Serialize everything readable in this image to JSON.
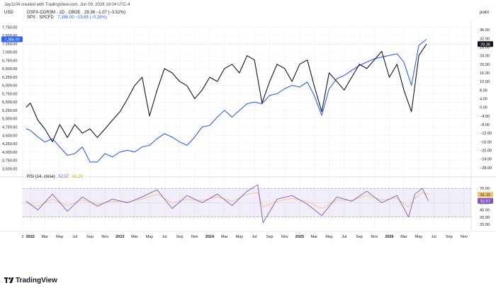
{
  "attribution": "Jay1104 created with TradingView.com, Jun 09, 2026 19:04 UTC-4",
  "brand": "TradingView",
  "header": {
    "currency_left": "USD",
    "currency_right": "point",
    "series1_label": "DSPX-COR3M · 1D · CBOE",
    "series1_values": "29.36  −1.07 (−3.52%)",
    "series2_label": "SPX · SPCFD",
    "series2_values": "7,386.00  −19.65 (−0.26%)"
  },
  "colors": {
    "series1": "#131722",
    "series2": "#2962ff",
    "rsi_line": "#7e57c2",
    "rsi_ma": "#f0c674",
    "rsi_band": "#7e57c2",
    "grid": "#eef0f4"
  },
  "chart_data": [
    {
      "type": "line",
      "title": "",
      "x": [
        "2021-12-15",
        "2022-01-01",
        "2022-02-01",
        "2022-03-01",
        "2022-04-01",
        "2022-05-01",
        "2022-06-01",
        "2022-07-01",
        "2022-08-01",
        "2022-09-01",
        "2022-10-01",
        "2022-11-01",
        "2022-12-01",
        "2023-01-01",
        "2023-02-01",
        "2023-03-01",
        "2023-04-01",
        "2023-05-01",
        "2023-06-01",
        "2023-07-01",
        "2023-08-01",
        "2023-09-01",
        "2023-10-01",
        "2023-11-01",
        "2023-12-01",
        "2024-01-01",
        "2024-02-01",
        "2024-03-01",
        "2024-04-01",
        "2024-05-01",
        "2024-06-01",
        "2024-07-01",
        "2024-08-01",
        "2024-09-01",
        "2024-10-01",
        "2024-11-01",
        "2024-12-01",
        "2025-01-01",
        "2025-02-01",
        "2025-03-01",
        "2025-04-01",
        "2025-05-01",
        "2025-06-01",
        "2025-07-01",
        "2025-08-01",
        "2025-09-01",
        "2025-10-01",
        "2025-11-01",
        "2025-12-01",
        "2026-01-01",
        "2026-02-01",
        "2026-03-01",
        "2026-04-01",
        "2026-05-01",
        "2026-06-01"
      ],
      "series": [
        {
          "name": "SPX · SPCFD",
          "axis": "left",
          "values": [
            4700,
            4650,
            4450,
            4300,
            4400,
            4150,
            3900,
            3950,
            4150,
            3700,
            3700,
            3950,
            3850,
            4000,
            4050,
            4000,
            4150,
            4200,
            4400,
            4550,
            4450,
            4300,
            4200,
            4450,
            4750,
            4800,
            5050,
            5250,
            5050,
            5250,
            5450,
            5500,
            5450,
            5700,
            5750,
            5900,
            6000,
            5950,
            6100,
            5700,
            5100,
            5900,
            6200,
            6300,
            6450,
            6600,
            6700,
            6800,
            6850,
            6900,
            6950,
            6700,
            6000,
            7200,
            7386
          ]
        },
        {
          "name": "DSPX-COR3M · 1D · CBOE",
          "axis": "right",
          "values": [
            0,
            2,
            -6,
            -10,
            -16,
            -8,
            -14,
            -8,
            -12,
            -10,
            -14,
            -10,
            -6,
            -2,
            4,
            10,
            14,
            -4,
            8,
            18,
            16,
            12,
            10,
            4,
            8,
            14,
            12,
            18,
            20,
            16,
            24,
            22,
            2,
            12,
            20,
            18,
            12,
            20,
            22,
            10,
            -2,
            16,
            12,
            8,
            14,
            20,
            18,
            22,
            26,
            14,
            20,
            8,
            -2,
            24,
            29.36
          ]
        }
      ],
      "ylabel": "",
      "ylim_left": [
        3400,
        7800
      ],
      "ylim_right": [
        -30,
        38
      ],
      "y_ticks_left": [
        "7,750.00",
        "7,500.00",
        "7,250.00",
        "7,000.00",
        "6,750.00",
        "6,500.00",
        "6,250.00",
        "6,000.00",
        "5,750.00",
        "5,500.00",
        "5,250.00",
        "5,000.00",
        "4,750.00",
        "4,500.00",
        "4,250.00",
        "4,000.00",
        "3,750.00",
        "3,500.00"
      ],
      "y_ticks_right": [
        "36.00",
        "32.00",
        "28.00",
        "24.00",
        "20.00",
        "16.00",
        "12.00",
        "8.00",
        "4.00",
        "0.00",
        "−4.00",
        "−8.00",
        "−12.00",
        "−16.00",
        "−20.00",
        "−24.00",
        "−28.00"
      ],
      "last_value_left": "7,386.00",
      "last_value_right": "29.36",
      "grid": true
    },
    {
      "type": "line",
      "title": "",
      "label": "RSI (14, close)",
      "label_values": [
        "52.57",
        "61.15"
      ],
      "x": [
        "2021-12-15",
        "2022-02-01",
        "2022-04-01",
        "2022-06-01",
        "2022-08-01",
        "2022-10-01",
        "2022-12-01",
        "2023-02-01",
        "2023-04-01",
        "2023-06-01",
        "2023-08-01",
        "2023-10-01",
        "2023-12-01",
        "2024-02-01",
        "2024-04-01",
        "2024-06-01",
        "2024-07-15",
        "2024-08-05",
        "2024-10-01",
        "2024-12-01",
        "2025-02-01",
        "2025-04-01",
        "2025-06-01",
        "2025-08-01",
        "2025-10-01",
        "2025-12-01",
        "2026-02-01",
        "2026-03-20",
        "2026-04-15",
        "2026-05-15",
        "2026-06-09"
      ],
      "series": [
        {
          "name": "RSI",
          "values": [
            52,
            40,
            62,
            38,
            58,
            45,
            55,
            50,
            58,
            68,
            42,
            60,
            50,
            62,
            46,
            66,
            75,
            22,
            55,
            60,
            48,
            32,
            58,
            52,
            66,
            50,
            60,
            30,
            62,
            70,
            52.57
          ]
        },
        {
          "name": "RSI-based MA",
          "values": [
            50,
            45,
            55,
            46,
            54,
            48,
            52,
            51,
            55,
            62,
            50,
            55,
            53,
            58,
            52,
            62,
            64,
            44,
            52,
            56,
            52,
            42,
            54,
            53,
            60,
            54,
            56,
            44,
            56,
            64,
            61.15
          ]
        }
      ],
      "ylim": [
        15,
        80
      ],
      "bands": [
        30,
        70
      ],
      "y_ticks": [
        "70.00",
        "50.00",
        "40.00",
        "30.00",
        "20.00"
      ],
      "grid": true
    }
  ],
  "x_axis_labels": [
    "2",
    "2022",
    "Mar",
    "May",
    "Jul",
    "Sep",
    "Nov",
    "2023",
    "Mar",
    "May",
    "Jul",
    "Sep",
    "Nov",
    "2024",
    "Mar",
    "May",
    "Jul",
    "Sep",
    "Nov",
    "2025",
    "Mar",
    "May",
    "Jul",
    "Sep",
    "Nov",
    "2026",
    "Mar",
    "May",
    "Jul",
    "Sep",
    "Nov"
  ]
}
